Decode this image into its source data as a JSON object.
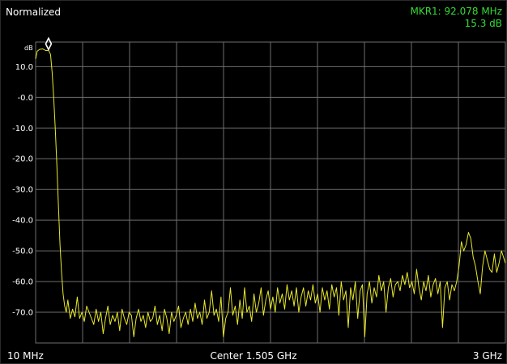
{
  "header": {
    "mode": "Normalized",
    "marker_freq": "MKR1: 92.078 MHz",
    "marker_level": "15.3 dB"
  },
  "colors": {
    "background": "#000000",
    "grid": "#6e6e6e",
    "trace": "#e8e82a",
    "marker_text": "#33dd33",
    "marker_symbol": "#ffffff"
  },
  "icons": {
    "marker": "diamond-marker-icon"
  },
  "footer": {
    "start": "10 MHz",
    "center": "Center 1.505 GHz",
    "stop": "3 GHz"
  },
  "chart_data": {
    "type": "line",
    "ylabel": "dB",
    "y_ticks": [
      "10.0",
      "-0.0",
      "-10.0",
      "-20.0",
      "-30.0",
      "-40.0",
      "-50.0",
      "-60.0",
      "-70.0"
    ],
    "ylim": [
      -80,
      18
    ],
    "xlim": [
      10,
      3000
    ],
    "x_unit": "MHz",
    "grid": true,
    "x_divisions": 10,
    "marker": {
      "name": "MKR1",
      "x": 92.078,
      "y": 15.3
    },
    "series": [
      {
        "color": "#e8e82a",
        "points": [
          [
            10,
            12.5
          ],
          [
            20,
            15.0
          ],
          [
            35,
            15.6
          ],
          [
            55,
            15.8
          ],
          [
            75,
            15.2
          ],
          [
            92,
            15.3
          ],
          [
            105,
            14.0
          ],
          [
            115,
            8.0
          ],
          [
            125,
            0.0
          ],
          [
            135,
            -10.0
          ],
          [
            145,
            -22.0
          ],
          [
            155,
            -35.0
          ],
          [
            165,
            -48.0
          ],
          [
            175,
            -57.0
          ],
          [
            185,
            -64.0
          ],
          [
            195,
            -68.0
          ],
          [
            205,
            -70.0
          ],
          [
            215,
            -66.0
          ],
          [
            230,
            -72.0
          ],
          [
            245,
            -69.0
          ],
          [
            260,
            -71.5
          ],
          [
            275,
            -65.0
          ],
          [
            290,
            -72.0
          ],
          [
            305,
            -70.0
          ],
          [
            320,
            -73.0
          ],
          [
            335,
            -68.0
          ],
          [
            350,
            -70.0
          ],
          [
            365,
            -72.0
          ],
          [
            380,
            -74.0
          ],
          [
            395,
            -69.0
          ],
          [
            410,
            -73.0
          ],
          [
            425,
            -70.0
          ],
          [
            440,
            -77.0
          ],
          [
            455,
            -72.0
          ],
          [
            470,
            -68.0
          ],
          [
            485,
            -74.0
          ],
          [
            500,
            -71.0
          ],
          [
            515,
            -73.0
          ],
          [
            530,
            -70.0
          ],
          [
            545,
            -76.0
          ],
          [
            560,
            -69.0
          ],
          [
            575,
            -72.0
          ],
          [
            590,
            -74.0
          ],
          [
            605,
            -70.0
          ],
          [
            620,
            -71.0
          ],
          [
            635,
            -78.0
          ],
          [
            650,
            -72.0
          ],
          [
            665,
            -69.0
          ],
          [
            680,
            -73.0
          ],
          [
            695,
            -71.0
          ],
          [
            710,
            -75.0
          ],
          [
            725,
            -70.0
          ],
          [
            740,
            -73.0
          ],
          [
            755,
            -72.0
          ],
          [
            770,
            -68.0
          ],
          [
            785,
            -74.0
          ],
          [
            800,
            -71.0
          ],
          [
            815,
            -76.0
          ],
          [
            830,
            -69.0
          ],
          [
            845,
            -72.0
          ],
          [
            860,
            -77.0
          ],
          [
            875,
            -70.0
          ],
          [
            890,
            -73.0
          ],
          [
            905,
            -71.0
          ],
          [
            920,
            -68.0
          ],
          [
            935,
            -75.0
          ],
          [
            950,
            -72.0
          ],
          [
            965,
            -70.0
          ],
          [
            980,
            -74.0
          ],
          [
            995,
            -69.0
          ],
          [
            1010,
            -73.0
          ],
          [
            1025,
            -67.0
          ],
          [
            1040,
            -72.0
          ],
          [
            1055,
            -70.0
          ],
          [
            1070,
            -74.0
          ],
          [
            1085,
            -66.0
          ],
          [
            1100,
            -72.0
          ],
          [
            1115,
            -70.0
          ],
          [
            1130,
            -63.0
          ],
          [
            1145,
            -71.0
          ],
          [
            1160,
            -69.0
          ],
          [
            1175,
            -73.0
          ],
          [
            1190,
            -65.0
          ],
          [
            1205,
            -78.0
          ],
          [
            1220,
            -72.0
          ],
          [
            1235,
            -70.0
          ],
          [
            1250,
            -62.0
          ],
          [
            1265,
            -71.0
          ],
          [
            1280,
            -68.0
          ],
          [
            1295,
            -74.0
          ],
          [
            1310,
            -66.0
          ],
          [
            1325,
            -72.0
          ],
          [
            1340,
            -62.0
          ],
          [
            1355,
            -70.0
          ],
          [
            1370,
            -68.0
          ],
          [
            1385,
            -73.0
          ],
          [
            1400,
            -64.0
          ],
          [
            1415,
            -70.0
          ],
          [
            1430,
            -67.0
          ],
          [
            1445,
            -62.0
          ],
          [
            1460,
            -71.0
          ],
          [
            1475,
            -66.0
          ],
          [
            1490,
            -63.0
          ],
          [
            1505,
            -69.0
          ],
          [
            1520,
            -65.0
          ],
          [
            1535,
            -70.0
          ],
          [
            1550,
            -62.0
          ],
          [
            1565,
            -67.0
          ],
          [
            1580,
            -64.0
          ],
          [
            1595,
            -69.0
          ],
          [
            1610,
            -61.0
          ],
          [
            1625,
            -66.0
          ],
          [
            1640,
            -63.0
          ],
          [
            1655,
            -68.0
          ],
          [
            1670,
            -62.0
          ],
          [
            1685,
            -70.0
          ],
          [
            1700,
            -65.0
          ],
          [
            1715,
            -62.0
          ],
          [
            1730,
            -68.0
          ],
          [
            1745,
            -63.0
          ],
          [
            1760,
            -66.0
          ],
          [
            1775,
            -61.0
          ],
          [
            1790,
            -67.0
          ],
          [
            1805,
            -64.0
          ],
          [
            1820,
            -70.0
          ],
          [
            1835,
            -62.0
          ],
          [
            1850,
            -66.0
          ],
          [
            1865,
            -63.0
          ],
          [
            1880,
            -69.0
          ],
          [
            1895,
            -61.0
          ],
          [
            1910,
            -65.0
          ],
          [
            1925,
            -62.0
          ],
          [
            1940,
            -71.0
          ],
          [
            1955,
            -60.0
          ],
          [
            1970,
            -66.0
          ],
          [
            1985,
            -63.0
          ],
          [
            2000,
            -75.0
          ],
          [
            2015,
            -62.0
          ],
          [
            2030,
            -66.0
          ],
          [
            2045,
            -60.0
          ],
          [
            2060,
            -72.0
          ],
          [
            2075,
            -63.0
          ],
          [
            2090,
            -61.0
          ],
          [
            2105,
            -78.0
          ],
          [
            2120,
            -64.0
          ],
          [
            2135,
            -60.0
          ],
          [
            2150,
            -67.0
          ],
          [
            2165,
            -62.0
          ],
          [
            2180,
            -65.0
          ],
          [
            2195,
            -58.0
          ],
          [
            2210,
            -63.0
          ],
          [
            2225,
            -60.0
          ],
          [
            2240,
            -70.0
          ],
          [
            2255,
            -62.0
          ],
          [
            2270,
            -59.0
          ],
          [
            2285,
            -65.0
          ],
          [
            2300,
            -61.0
          ],
          [
            2315,
            -60.0
          ],
          [
            2330,
            -63.0
          ],
          [
            2345,
            -58.0
          ],
          [
            2360,
            -61.0
          ],
          [
            2375,
            -57.0
          ],
          [
            2390,
            -62.0
          ],
          [
            2405,
            -60.0
          ],
          [
            2420,
            -64.0
          ],
          [
            2435,
            -56.0
          ],
          [
            2450,
            -62.0
          ],
          [
            2465,
            -66.0
          ],
          [
            2480,
            -60.0
          ],
          [
            2495,
            -63.0
          ],
          [
            2510,
            -58.0
          ],
          [
            2525,
            -65.0
          ],
          [
            2540,
            -61.0
          ],
          [
            2555,
            -59.0
          ],
          [
            2570,
            -64.0
          ],
          [
            2585,
            -60.0
          ],
          [
            2600,
            -75.0
          ],
          [
            2615,
            -62.0
          ],
          [
            2630,
            -60.0
          ],
          [
            2645,
            -66.0
          ],
          [
            2660,
            -61.0
          ],
          [
            2675,
            -63.0
          ],
          [
            2690,
            -60.0
          ],
          [
            2705,
            -55.0
          ],
          [
            2720,
            -47.0
          ],
          [
            2735,
            -50.0
          ],
          [
            2750,
            -48.0
          ],
          [
            2765,
            -44.0
          ],
          [
            2780,
            -46.0
          ],
          [
            2795,
            -52.0
          ],
          [
            2810,
            -55.0
          ],
          [
            2825,
            -60.0
          ],
          [
            2840,
            -64.0
          ],
          [
            2855,
            -55.0
          ],
          [
            2870,
            -50.0
          ],
          [
            2885,
            -53.0
          ],
          [
            2900,
            -56.0
          ],
          [
            2915,
            -57.0
          ],
          [
            2930,
            -51.0
          ],
          [
            2945,
            -57.0
          ],
          [
            2960,
            -54.0
          ],
          [
            2975,
            -50.0
          ],
          [
            3000,
            -54.0
          ]
        ]
      }
    ]
  }
}
